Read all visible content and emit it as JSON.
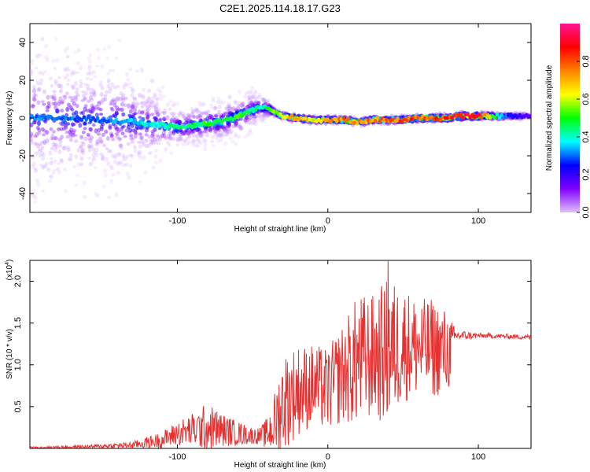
{
  "figure": {
    "title": "C2E1.2025.114.18.17.G23"
  },
  "chart_data": [
    {
      "type": "heatmap",
      "xlabel": "Height of straight line (km)",
      "ylabel": "Frequency (Hz)",
      "xlim": [
        -198,
        135
      ],
      "ylim": [
        -50,
        50
      ],
      "x_ticks": [
        -100,
        0,
        100
      ],
      "y_ticks": [
        -40,
        -20,
        0,
        20,
        40
      ],
      "colorbar": {
        "label": "Normalized spectral amplitude",
        "range": [
          0,
          1
        ],
        "ticks": [
          0.0,
          0.2,
          0.4,
          0.6,
          0.8
        ],
        "colors": [
          "#e0c0ff",
          "#8000ff",
          "#0000ff",
          "#00ffff",
          "#00ff00",
          "#ffff00",
          "#ff8000",
          "#ff0000",
          "#ff1493"
        ]
      },
      "ridge": {
        "x": [
          -198,
          -170,
          -150,
          -130,
          -110,
          -100,
          -90,
          -80,
          -70,
          -60,
          -50,
          -45,
          -40,
          -35,
          -30,
          -20,
          -10,
          0,
          10,
          20,
          30,
          40,
          50,
          60,
          70,
          80,
          85,
          100,
          110,
          120,
          135
        ],
        "y": [
          0,
          0,
          -1,
          -2,
          -4,
          -5,
          -4,
          -3,
          -2,
          1,
          4,
          6,
          5,
          3,
          1,
          0,
          -1,
          -1,
          -1,
          -2,
          -1,
          -1,
          -1,
          0,
          0,
          0,
          1,
          1,
          1,
          1,
          1
        ],
        "amplitude": [
          0.3,
          0.3,
          0.3,
          0.35,
          0.4,
          0.45,
          0.45,
          0.5,
          0.5,
          0.5,
          0.45,
          0.4,
          0.5,
          0.55,
          0.65,
          0.7,
          0.65,
          0.7,
          0.75,
          0.7,
          0.75,
          0.75,
          0.8,
          0.8,
          0.8,
          0.85,
          0.9,
          0.95,
          0.5,
          0.25,
          0.15
        ]
      },
      "scatter_spread_hz": {
        "x": [
          -198,
          -140,
          -100,
          -50,
          -35,
          135
        ],
        "spread": [
          45,
          40,
          12,
          12,
          2,
          2
        ]
      }
    },
    {
      "type": "line",
      "xlabel": "Height of straight line (km)",
      "ylabel": "SNR (10 * v/v)",
      "y_multiplier": "(x10",
      "y_multiplier_exp": "4",
      "xlim": [
        -198,
        135
      ],
      "ylim": [
        0,
        2.25
      ],
      "x_ticks": [
        -100,
        0,
        100
      ],
      "y_ticks": [
        0.5,
        1.0,
        1.5,
        2.0
      ],
      "color": "#e83030",
      "envelope": {
        "x": [
          -198,
          -160,
          -130,
          -110,
          -100,
          -90,
          -80,
          -70,
          -60,
          -50,
          -45,
          -40,
          -35,
          -30,
          -20,
          -10,
          0,
          10,
          20,
          30,
          40,
          50,
          60,
          70,
          80,
          85,
          90,
          100,
          120,
          135
        ],
        "base": [
          0.01,
          0.02,
          0.04,
          0.1,
          0.18,
          0.22,
          0.25,
          0.22,
          0.18,
          0.15,
          0.15,
          0.18,
          0.3,
          0.55,
          0.7,
          0.75,
          0.7,
          0.9,
          1.05,
          1.1,
          1.15,
          1.25,
          1.2,
          1.2,
          1.15,
          1.35,
          1.35,
          1.35,
          1.34,
          1.33
        ],
        "amplitude": [
          0.01,
          0.02,
          0.04,
          0.1,
          0.15,
          0.2,
          0.3,
          0.2,
          0.15,
          0.1,
          0.1,
          0.2,
          0.4,
          0.6,
          0.55,
          0.5,
          0.5,
          0.6,
          0.8,
          0.75,
          0.9,
          0.7,
          0.6,
          0.6,
          0.5,
          0.06,
          0.06,
          0.03,
          0.03,
          0.03
        ]
      },
      "peak": {
        "x": 40,
        "y": 2.25
      }
    }
  ]
}
